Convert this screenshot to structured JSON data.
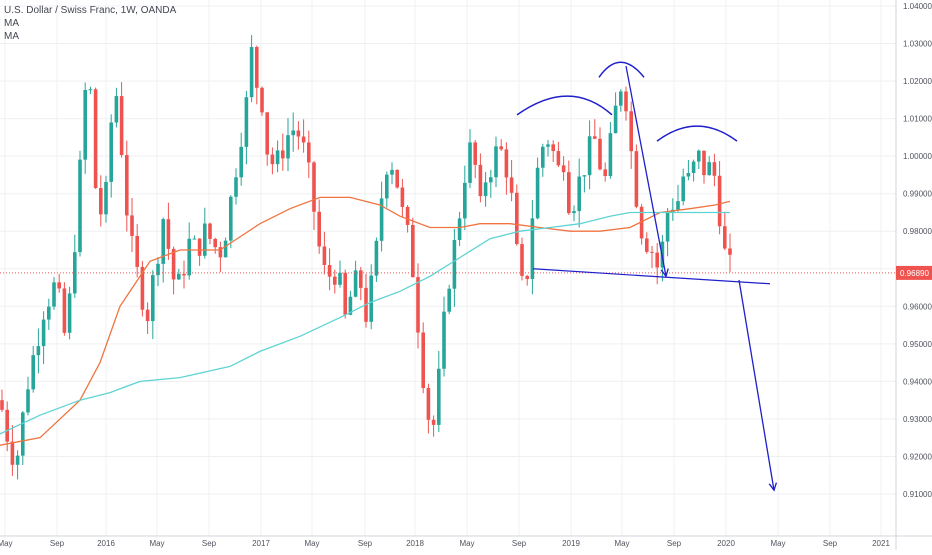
{
  "header": {
    "title": "U.S. Dollar / Swiss Franc, 1W, OANDA",
    "indicators": [
      "MA",
      "MA"
    ]
  },
  "colors": {
    "up": "#26a69a",
    "down": "#ef5350",
    "ma_orange": "#f0743f",
    "ma_cyan": "#5fd3d3",
    "drawing": "#1f1fcc",
    "price_line": "#ef5350",
    "grid": "#eef0f3",
    "axis_text": "#50535e"
  },
  "chart_data": {
    "type": "candlestick",
    "title": "U.S. Dollar / Swiss Franc, 1W, OANDA",
    "timeframe": "1W",
    "ylim": [
      0.905,
      1.041
    ],
    "y_ticks": [
      "1.04000",
      "1.03000",
      "1.02000",
      "1.01000",
      "1.00000",
      "0.99000",
      "0.98000",
      "0.97000",
      "0.96000",
      "0.95000",
      "0.94000",
      "0.93000",
      "0.92000",
      "0.91000"
    ],
    "x_ticks": [
      "May",
      "Sep",
      "2016",
      "May",
      "Sep",
      "2017",
      "May",
      "Sep",
      "2018",
      "May",
      "Sep",
      "2019",
      "May",
      "Sep",
      "2020",
      "May",
      "Sep",
      "2021"
    ],
    "last_price": "0.96890",
    "series": [
      {
        "name": "MA",
        "kind": "moving-average",
        "color": "#f0743f",
        "points": [
          [
            0,
            0.923
          ],
          [
            40,
            0.925
          ],
          [
            80,
            0.935
          ],
          [
            100,
            0.945
          ],
          [
            120,
            0.96
          ],
          [
            150,
            0.972
          ],
          [
            180,
            0.975
          ],
          [
            220,
            0.975
          ],
          [
            260,
            0.982
          ],
          [
            290,
            0.986
          ],
          [
            320,
            0.989
          ],
          [
            350,
            0.989
          ],
          [
            380,
            0.987
          ],
          [
            400,
            0.984
          ],
          [
            430,
            0.981
          ],
          [
            460,
            0.981
          ],
          [
            480,
            0.982
          ],
          [
            510,
            0.982
          ],
          [
            540,
            0.981
          ],
          [
            570,
            0.98
          ],
          [
            600,
            0.98
          ],
          [
            630,
            0.981
          ],
          [
            660,
            0.985
          ],
          [
            690,
            0.986
          ],
          [
            715,
            0.987
          ],
          [
            730,
            0.988
          ]
        ]
      },
      {
        "name": "MA",
        "kind": "moving-average",
        "color": "#5fd3d3",
        "points": [
          [
            0,
            0.926
          ],
          [
            40,
            0.931
          ],
          [
            80,
            0.935
          ],
          [
            110,
            0.937
          ],
          [
            140,
            0.94
          ],
          [
            180,
            0.941
          ],
          [
            230,
            0.944
          ],
          [
            260,
            0.948
          ],
          [
            300,
            0.952
          ],
          [
            340,
            0.957
          ],
          [
            370,
            0.961
          ],
          [
            400,
            0.964
          ],
          [
            430,
            0.968
          ],
          [
            460,
            0.973
          ],
          [
            490,
            0.978
          ],
          [
            520,
            0.98
          ],
          [
            550,
            0.981
          ],
          [
            580,
            0.982
          ],
          [
            610,
            0.984
          ],
          [
            630,
            0.985
          ],
          [
            660,
            0.985
          ],
          [
            700,
            0.985
          ],
          [
            730,
            0.985
          ]
        ]
      }
    ],
    "annotations": {
      "neckline": [
        [
          533,
          0.97
        ],
        [
          770,
          0.966
        ]
      ],
      "left_shoulder_arc": {
        "from": [
          517,
          1.011
        ],
        "peak": [
          570,
          1.016
        ],
        "to": [
          612,
          1.011
        ]
      },
      "head_arc": {
        "from": [
          599,
          1.021
        ],
        "peak": [
          620,
          1.025
        ],
        "to": [
          644,
          1.021
        ]
      },
      "right_shoulder_arc": {
        "from": [
          657,
          1.004
        ],
        "peak": [
          697,
          1.008
        ],
        "to": [
          737,
          1.004
        ]
      },
      "arrow_1": {
        "from": [
          626,
          1.024
        ],
        "to": [
          666,
          0.968
        ]
      },
      "arrow_2": {
        "from": [
          739,
          0.967
        ],
        "to": [
          774,
          0.911
        ]
      }
    }
  }
}
